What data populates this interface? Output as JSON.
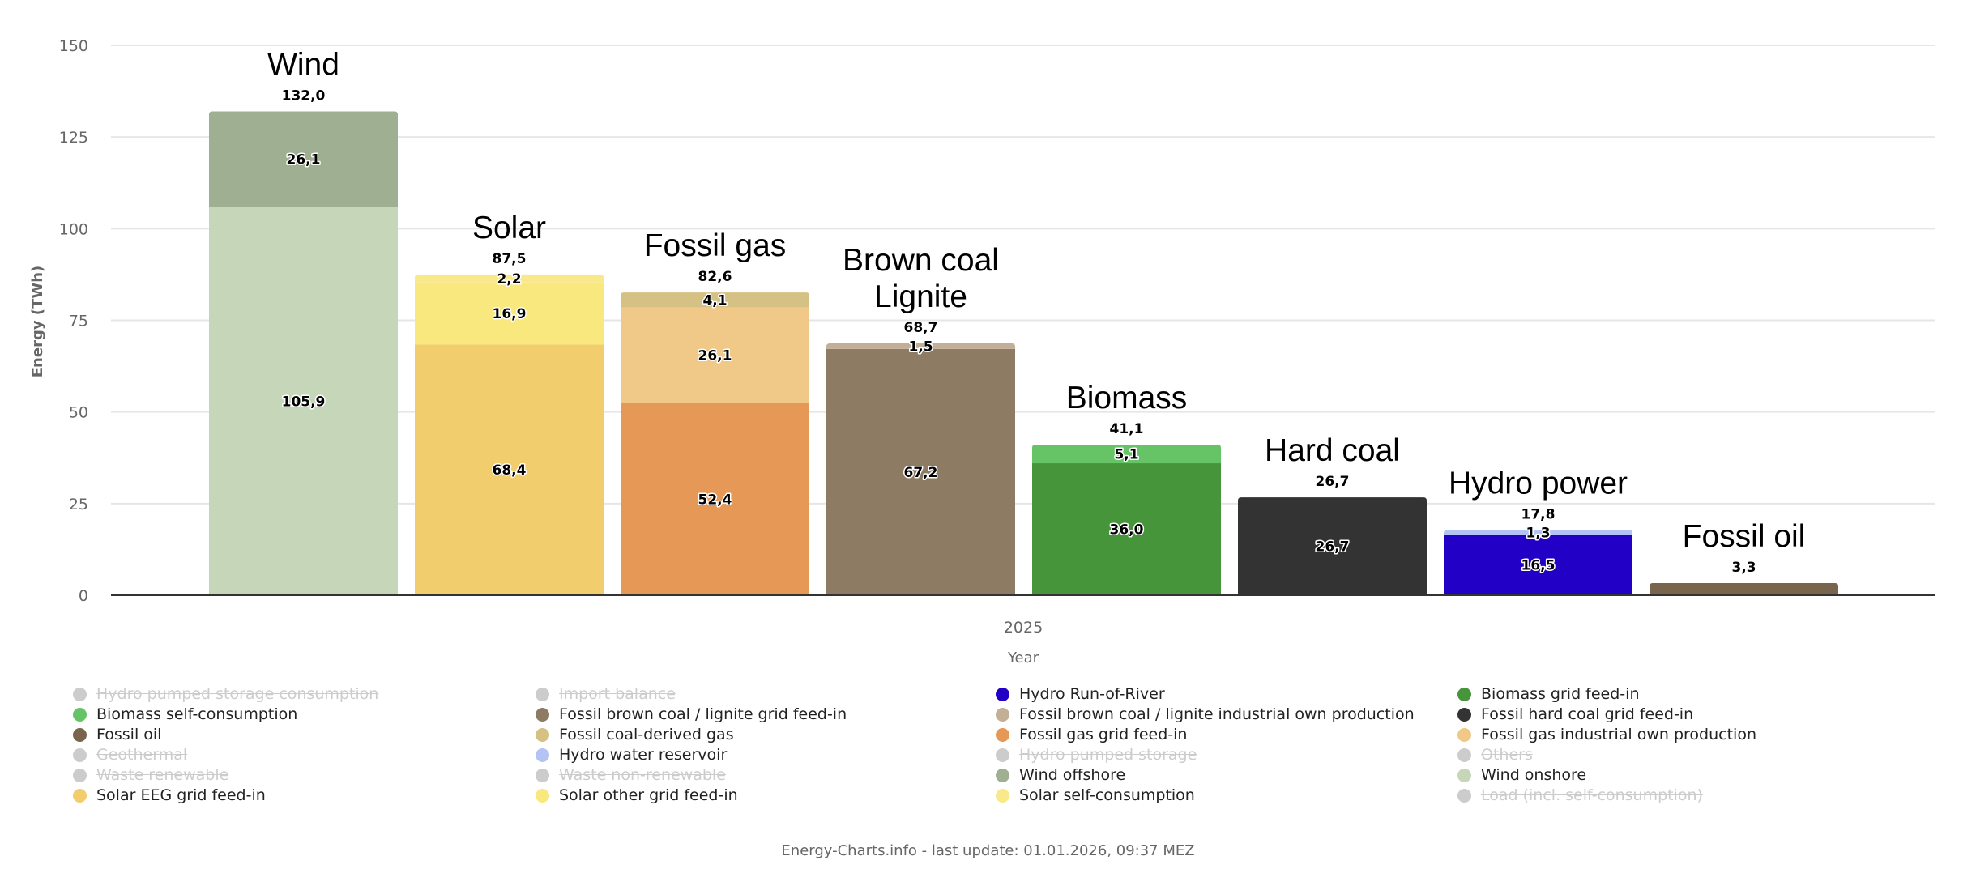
{
  "chart_data": {
    "type": "bar",
    "stacked": true,
    "xlabel": "Year",
    "ylabel": "Energy (TWh)",
    "x_category": "2025",
    "ylim": [
      0,
      150
    ],
    "yticks": [
      "0",
      "25",
      "50",
      "75",
      "100",
      "125",
      "150"
    ],
    "grid": true,
    "bars": [
      {
        "title": [
          "Wind"
        ],
        "total": "132,0",
        "segments": [
          {
            "series": "Wind onshore",
            "value": 105.9,
            "label": "105,9",
            "color": "#c6d7b9"
          },
          {
            "series": "Wind offshore",
            "value": 26.1,
            "label": "26,1",
            "color": "#9faf92"
          }
        ]
      },
      {
        "title": [
          "Solar"
        ],
        "total": "87,5",
        "segments": [
          {
            "series": "Solar EEG grid feed-in",
            "value": 68.4,
            "label": "68,4",
            "color": "#f2cd6e"
          },
          {
            "series": "Solar other grid feed-in",
            "value": 16.9,
            "label": "16,9",
            "color": "#f8e87e"
          },
          {
            "series": "Solar self-consumption",
            "value": 2.2,
            "label": "2,2",
            "color": "#f9e98a"
          }
        ]
      },
      {
        "title": [
          "Fossil gas"
        ],
        "total": "82,6",
        "segments": [
          {
            "series": "Fossil gas grid feed-in",
            "value": 52.4,
            "label": "52,4",
            "color": "#e69857"
          },
          {
            "series": "Fossil gas industrial own production",
            "value": 26.1,
            "label": "26,1",
            "color": "#f0c887"
          },
          {
            "series": "Fossil coal-derived gas",
            "value": 4.1,
            "label": "4,1",
            "color": "#d5c183"
          }
        ]
      },
      {
        "title": [
          "Brown coal",
          "Lignite"
        ],
        "total": "68,7",
        "segments": [
          {
            "series": "Fossil brown coal / lignite grid feed-in",
            "value": 67.2,
            "label": "67,2",
            "color": "#8e7b63"
          },
          {
            "series": "Fossil brown coal / lignite industrial own production",
            "value": 1.5,
            "label": "1,5",
            "color": "#c2af96"
          }
        ]
      },
      {
        "title": [
          "Biomass"
        ],
        "total": "41,1",
        "segments": [
          {
            "series": "Biomass grid feed-in",
            "value": 36.0,
            "label": "36,0",
            "color": "#46953a"
          },
          {
            "series": "Biomass self-consumption",
            "value": 5.1,
            "label": "5,1",
            "color": "#67c466"
          }
        ]
      },
      {
        "title": [
          "Hard coal"
        ],
        "total": "26,7",
        "segments": [
          {
            "series": "Fossil hard coal grid feed-in",
            "value": 26.7,
            "label": "26,7",
            "color": "#333333"
          }
        ]
      },
      {
        "title": [
          "Hydro power"
        ],
        "total": "17,8",
        "segments": [
          {
            "series": "Hydro Run-of-River",
            "value": 16.5,
            "label": "16,5",
            "color": "#2300c6"
          },
          {
            "series": "Hydro water reservoir",
            "value": 1.3,
            "label": "1,3",
            "color": "#b3c3f4"
          }
        ]
      },
      {
        "title": [
          "Fossil oil"
        ],
        "total": "3,3",
        "segments": [
          {
            "series": "Fossil oil",
            "value": 3.3,
            "label": "",
            "color": "#79644c"
          }
        ]
      }
    ],
    "legend": [
      {
        "label": "Hydro pumped storage consumption",
        "color": "#cccccc",
        "enabled": false
      },
      {
        "label": "Import balance",
        "color": "#cccccc",
        "enabled": false
      },
      {
        "label": "Hydro Run-of-River",
        "color": "#2300c6",
        "enabled": true
      },
      {
        "label": "Biomass grid feed-in",
        "color": "#46953a",
        "enabled": true
      },
      {
        "label": "Biomass self-consumption",
        "color": "#67c466",
        "enabled": true
      },
      {
        "label": "Fossil brown coal / lignite grid feed-in",
        "color": "#8e7b63",
        "enabled": true
      },
      {
        "label": "Fossil brown coal / lignite industrial own production",
        "color": "#c2af96",
        "enabled": true
      },
      {
        "label": "Fossil hard coal grid feed-in",
        "color": "#333333",
        "enabled": true
      },
      {
        "label": "Fossil oil",
        "color": "#79644c",
        "enabled": true
      },
      {
        "label": "Fossil coal-derived gas",
        "color": "#d5c183",
        "enabled": true
      },
      {
        "label": "Fossil gas grid feed-in",
        "color": "#e69857",
        "enabled": true
      },
      {
        "label": "Fossil gas industrial own production",
        "color": "#f0c887",
        "enabled": true
      },
      {
        "label": "Geothermal",
        "color": "#cccccc",
        "enabled": false
      },
      {
        "label": "Hydro water reservoir",
        "color": "#b3c3f4",
        "enabled": true
      },
      {
        "label": "Hydro pumped storage",
        "color": "#cccccc",
        "enabled": false
      },
      {
        "label": "Others",
        "color": "#cccccc",
        "enabled": false
      },
      {
        "label": "Waste renewable",
        "color": "#cccccc",
        "enabled": false
      },
      {
        "label": "Waste non-renewable",
        "color": "#cccccc",
        "enabled": false
      },
      {
        "label": "Wind offshore",
        "color": "#9faf92",
        "enabled": true
      },
      {
        "label": "Wind onshore",
        "color": "#c6d7b9",
        "enabled": true
      },
      {
        "label": "Solar EEG grid feed-in",
        "color": "#f2cd6e",
        "enabled": true
      },
      {
        "label": "Solar other grid feed-in",
        "color": "#f8e87e",
        "enabled": true
      },
      {
        "label": "Solar self-consumption",
        "color": "#f9e98a",
        "enabled": true
      },
      {
        "label": "Load (incl. self-consumption)",
        "color": "#cccccc",
        "enabled": false
      }
    ]
  },
  "footer": "Energy-Charts.info - last update: 01.01.2026, 09:37 MEZ"
}
